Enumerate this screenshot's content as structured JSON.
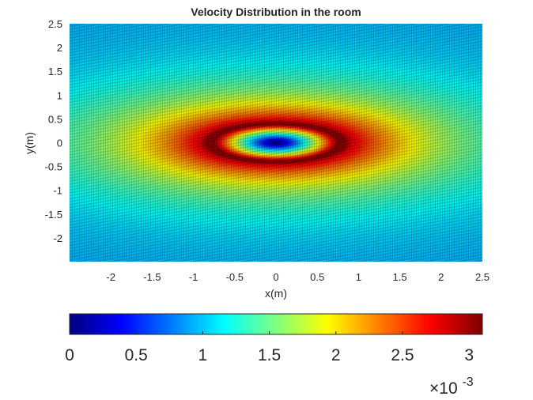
{
  "chart_data": {
    "type": "heatmap",
    "title": "Velocity Distribution in the room",
    "xlabel": "x(m)",
    "ylabel": "y(m)",
    "xlim": [
      -2.5,
      2.5
    ],
    "ylim": [
      -2.5,
      2.5
    ],
    "xticks": [
      -2,
      -1.5,
      -1,
      -0.5,
      0,
      0.5,
      1,
      1.5,
      2,
      2.5
    ],
    "xtick_labels": [
      "-2",
      "-1.5",
      "-1",
      "-0.5",
      "0",
      "0.5",
      "1",
      "1.5",
      "2",
      "2.5"
    ],
    "yticks": [
      2.5,
      2,
      1.5,
      1,
      0.5,
      0,
      -0.5,
      -1,
      -1.5,
      -2
    ],
    "ytick_labels": [
      "2.5",
      "2",
      "1.5",
      "1",
      "0.5",
      "0",
      "-0.5",
      "-1",
      "-1.5",
      "-2"
    ],
    "field": {
      "description_units": "velocity magnitude",
      "center": [
        0,
        0
      ],
      "ring_radius_x": 0.75,
      "ring_radius_y": 0.38,
      "peak_value": 0.0031,
      "center_value": 0.0,
      "far_field_value": 0.0009
    },
    "colorbar": {
      "colormap": "jet",
      "location": "bottom",
      "clim": [
        0,
        0.0031
      ],
      "ticks": [
        0,
        0.5,
        1,
        1.5,
        2,
        2.5,
        3
      ],
      "tick_labels": [
        "0",
        "0.5",
        "1",
        "1.5",
        "2",
        "2.5",
        "3"
      ],
      "exponent_label": "×10",
      "exponent_power": "-3"
    },
    "grid": false,
    "legend": "none"
  }
}
